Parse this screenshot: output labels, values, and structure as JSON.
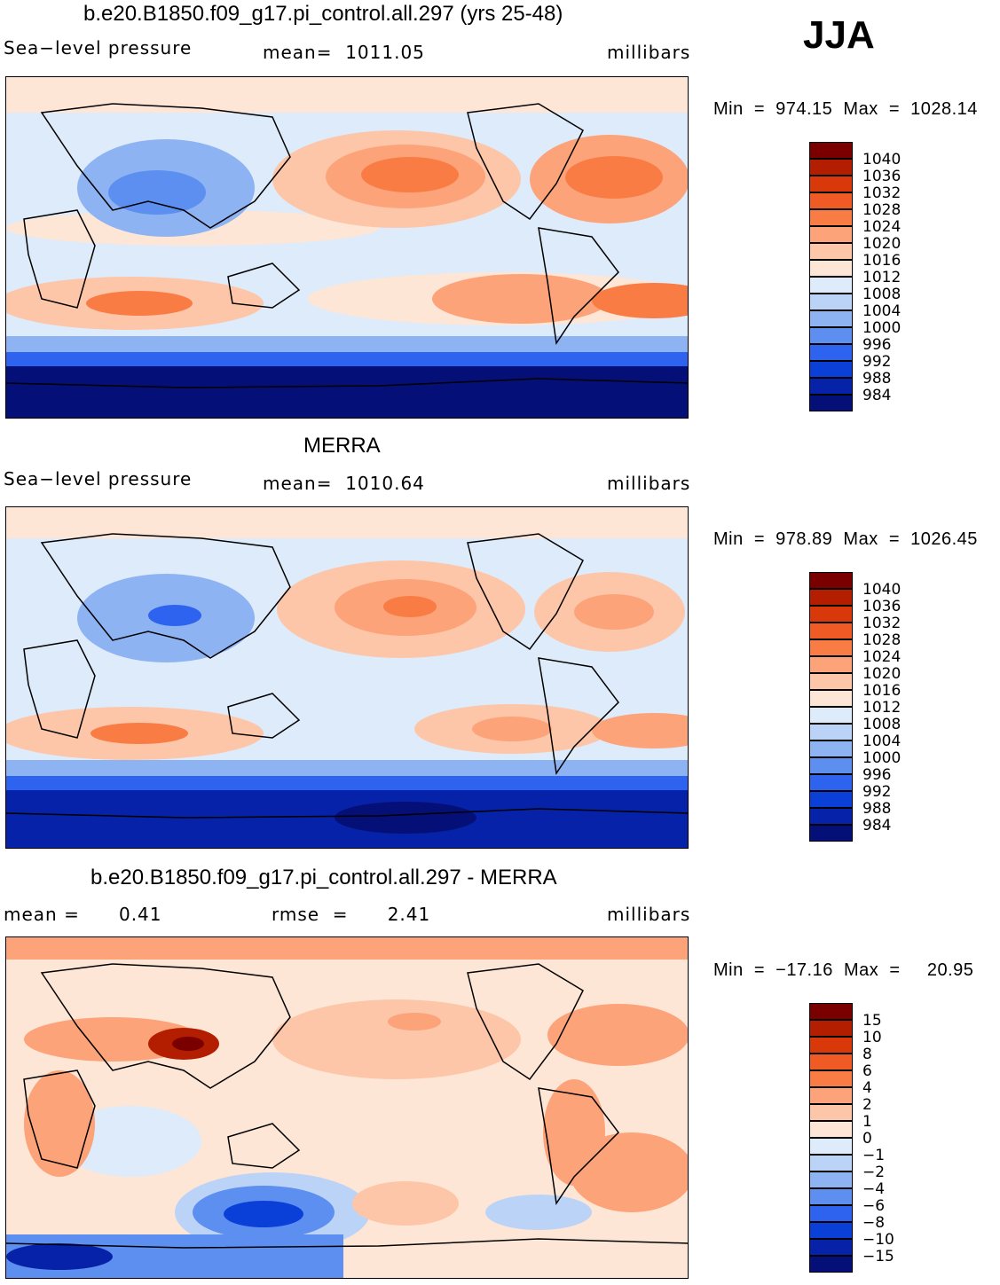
{
  "season": "JJA",
  "panels": [
    {
      "id": "model",
      "title": "b.e20.B1850.f09_g17.pi_control.all.297 (yrs 25-48)",
      "left_label": "Sea−level pressure",
      "center_label": "mean=  1011.05",
      "right_label": "millibars",
      "minmax": "Min  =  974.15  Max  =  1028.14",
      "colorbar": {
        "labels": [
          "1040",
          "1036",
          "1032",
          "1028",
          "1024",
          "1020",
          "1016",
          "1012",
          "1008",
          "1004",
          "1000",
          "996",
          "992",
          "988",
          "984"
        ],
        "colors": [
          "#7a0000",
          "#b31e00",
          "#d8380a",
          "#f05a25",
          "#fa7c45",
          "#fca37a",
          "#fdc6a8",
          "#fee6d6",
          "#deebfa",
          "#bcd3f8",
          "#8eb3f3",
          "#5c8ff0",
          "#2d63ee",
          "#0a3fd8",
          "#0522a8",
          "#050f78"
        ]
      }
    },
    {
      "id": "obs",
      "title": "MERRA",
      "left_label": "Sea−level pressure",
      "center_label": "mean=  1010.64",
      "right_label": "millibars",
      "minmax": "Min  =  978.89  Max  =  1026.45",
      "colorbar": {
        "labels": [
          "1040",
          "1036",
          "1032",
          "1028",
          "1024",
          "1020",
          "1016",
          "1012",
          "1008",
          "1004",
          "1000",
          "996",
          "992",
          "988",
          "984"
        ],
        "colors": [
          "#7a0000",
          "#b31e00",
          "#d8380a",
          "#f05a25",
          "#fa7c45",
          "#fca37a",
          "#fdc6a8",
          "#fee6d6",
          "#deebfa",
          "#bcd3f8",
          "#8eb3f3",
          "#5c8ff0",
          "#2d63ee",
          "#0a3fd8",
          "#0522a8",
          "#050f78"
        ]
      }
    },
    {
      "id": "diff",
      "title": "b.e20.B1850.f09_g17.pi_control.all.297 - MERRA",
      "left_label": "mean =      0.41",
      "center_label": "rmse  =      2.41",
      "right_label": "millibars",
      "minmax": "Min  =  −17.16  Max  =     20.95",
      "colorbar": {
        "labels": [
          "15",
          "10",
          "8",
          "6",
          "4",
          "2",
          "1",
          "0",
          "−1",
          "−2",
          "−4",
          "−6",
          "−8",
          "−10",
          "−15"
        ],
        "colors": [
          "#7a0000",
          "#b31e00",
          "#d8380a",
          "#f05a25",
          "#fa7c45",
          "#fca37a",
          "#fdc6a8",
          "#fee6d6",
          "#deebfa",
          "#bcd3f8",
          "#8eb3f3",
          "#5c8ff0",
          "#2d63ee",
          "#0a3fd8",
          "#0522a8",
          "#050f78"
        ]
      }
    }
  ],
  "chart_data": [
    {
      "type": "heatmap",
      "title": "b.e20.B1850.f09_g17.pi_control.all.297 (yrs 25-48)",
      "variable": "Sea-level pressure",
      "units": "millibars",
      "mean": 1011.05,
      "min": 974.15,
      "max": 1028.14,
      "contour_levels": [
        984,
        988,
        992,
        996,
        1000,
        1004,
        1008,
        1012,
        1016,
        1020,
        1024,
        1028,
        1032,
        1036,
        1040
      ],
      "projection": "global lat-lon, centered on Pacific"
    },
    {
      "type": "heatmap",
      "title": "MERRA",
      "variable": "Sea-level pressure",
      "units": "millibars",
      "mean": 1010.64,
      "min": 978.89,
      "max": 1026.45,
      "contour_levels": [
        984,
        988,
        992,
        996,
        1000,
        1004,
        1008,
        1012,
        1016,
        1020,
        1024,
        1028,
        1032,
        1036,
        1040
      ],
      "projection": "global lat-lon, centered on Pacific"
    },
    {
      "type": "heatmap",
      "title": "b.e20.B1850.f09_g17.pi_control.all.297 - MERRA",
      "variable": "Sea-level pressure difference",
      "units": "millibars",
      "mean": 0.41,
      "rmse": 2.41,
      "min": -17.16,
      "max": 20.95,
      "contour_levels": [
        -15,
        -10,
        -8,
        -6,
        -4,
        -2,
        -1,
        0,
        1,
        2,
        4,
        6,
        8,
        10,
        15
      ],
      "projection": "global lat-lon, centered on Pacific"
    }
  ]
}
